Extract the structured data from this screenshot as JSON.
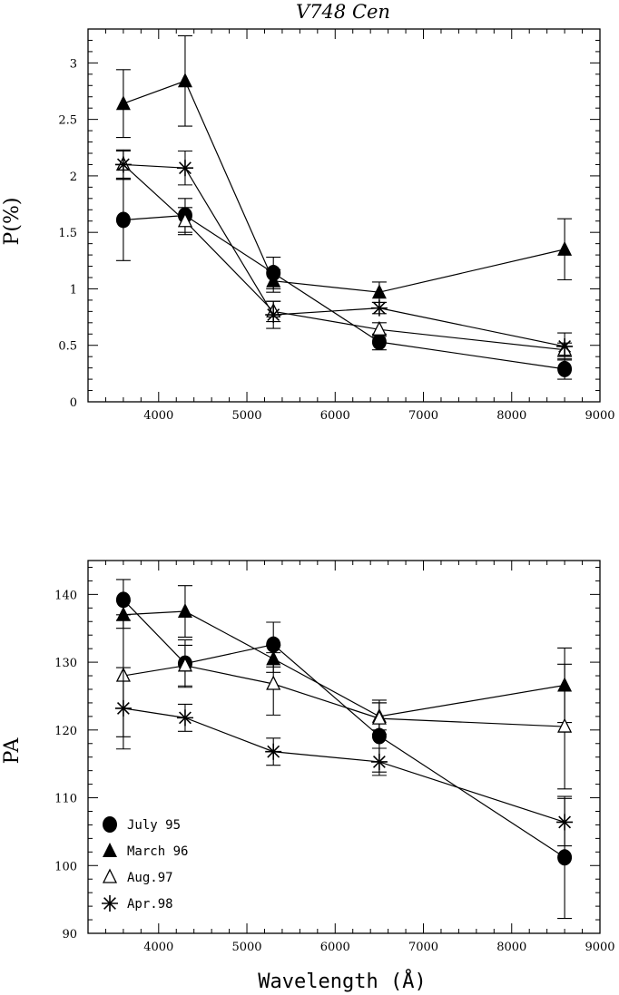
{
  "chart_data": [
    {
      "type": "line",
      "title": "V748 Cen",
      "xlabel": "",
      "ylabel": "P(%)",
      "xlim": [
        3200,
        9000
      ],
      "ylim": [
        0,
        3.3
      ],
      "xticks": [
        "4000",
        "5000",
        "6000",
        "7000",
        "8000",
        "9000"
      ],
      "yticks": [
        "0",
        "0.5",
        "1",
        "1.5",
        "2",
        "2.5",
        "3"
      ],
      "x": [
        3600,
        4300,
        5300,
        6500,
        8600
      ],
      "series": [
        {
          "name": "July 95",
          "marker": "filled-circle",
          "values": [
            1.61,
            1.65,
            1.14,
            0.53,
            0.29
          ],
          "errors": [
            0.36,
            0.15,
            0.14,
            0.07,
            0.09
          ]
        },
        {
          "name": "March 96",
          "marker": "filled-triangle",
          "values": [
            2.64,
            2.84,
            1.07,
            0.97,
            1.35
          ],
          "errors": [
            0.3,
            0.4,
            0.1,
            0.09,
            0.27
          ]
        },
        {
          "name": "Aug.97",
          "marker": "open-triangle",
          "values": [
            2.1,
            1.6,
            0.8,
            0.64,
            0.46
          ],
          "errors": [
            0.12,
            0.12,
            0.09,
            0.06,
            0.06
          ]
        },
        {
          "name": "Apr.98",
          "marker": "asterisk",
          "values": [
            2.1,
            2.07,
            0.77,
            0.83,
            0.49
          ],
          "errors": [
            0.13,
            0.15,
            0.12,
            0.05,
            0.12
          ]
        }
      ]
    },
    {
      "type": "line",
      "title": "",
      "xlabel": "Wavelength (Å)",
      "ylabel": "PA",
      "xlim": [
        3200,
        9000
      ],
      "ylim": [
        90,
        145
      ],
      "xticks": [
        "4000",
        "5000",
        "6000",
        "7000",
        "8000",
        "9000"
      ],
      "yticks": [
        "90",
        "100",
        "110",
        "120",
        "130",
        "140"
      ],
      "x": [
        3600,
        4300,
        5300,
        6500,
        8600
      ],
      "series": [
        {
          "name": "July 95",
          "marker": "filled-circle",
          "values": [
            139.2,
            129.8,
            132.6,
            119.1,
            101.2
          ],
          "errors": [
            3.0,
            3.5,
            3.3,
            5.3,
            9.0
          ]
        },
        {
          "name": "March 96",
          "marker": "filled-triangle",
          "values": [
            137.0,
            137.5,
            130.5,
            122.0,
            126.6
          ],
          "errors": [
            2.0,
            3.8,
            2.0,
            2.0,
            5.5
          ]
        },
        {
          "name": "Aug.97",
          "marker": "open-triangle",
          "values": [
            128.0,
            129.5,
            126.8,
            121.7,
            120.5
          ],
          "errors": [
            9.0,
            3.0,
            4.6,
            2.3,
            9.2
          ]
        },
        {
          "name": "Apr.98",
          "marker": "asterisk",
          "values": [
            123.2,
            121.8,
            116.8,
            115.3,
            106.4
          ],
          "errors": [
            6.0,
            2.0,
            2.0,
            2.0,
            3.5
          ]
        }
      ],
      "legend": {
        "placement": "lower-left",
        "entries": [
          "July 95",
          "March 96",
          "Aug.97",
          "Apr.98"
        ]
      }
    }
  ]
}
